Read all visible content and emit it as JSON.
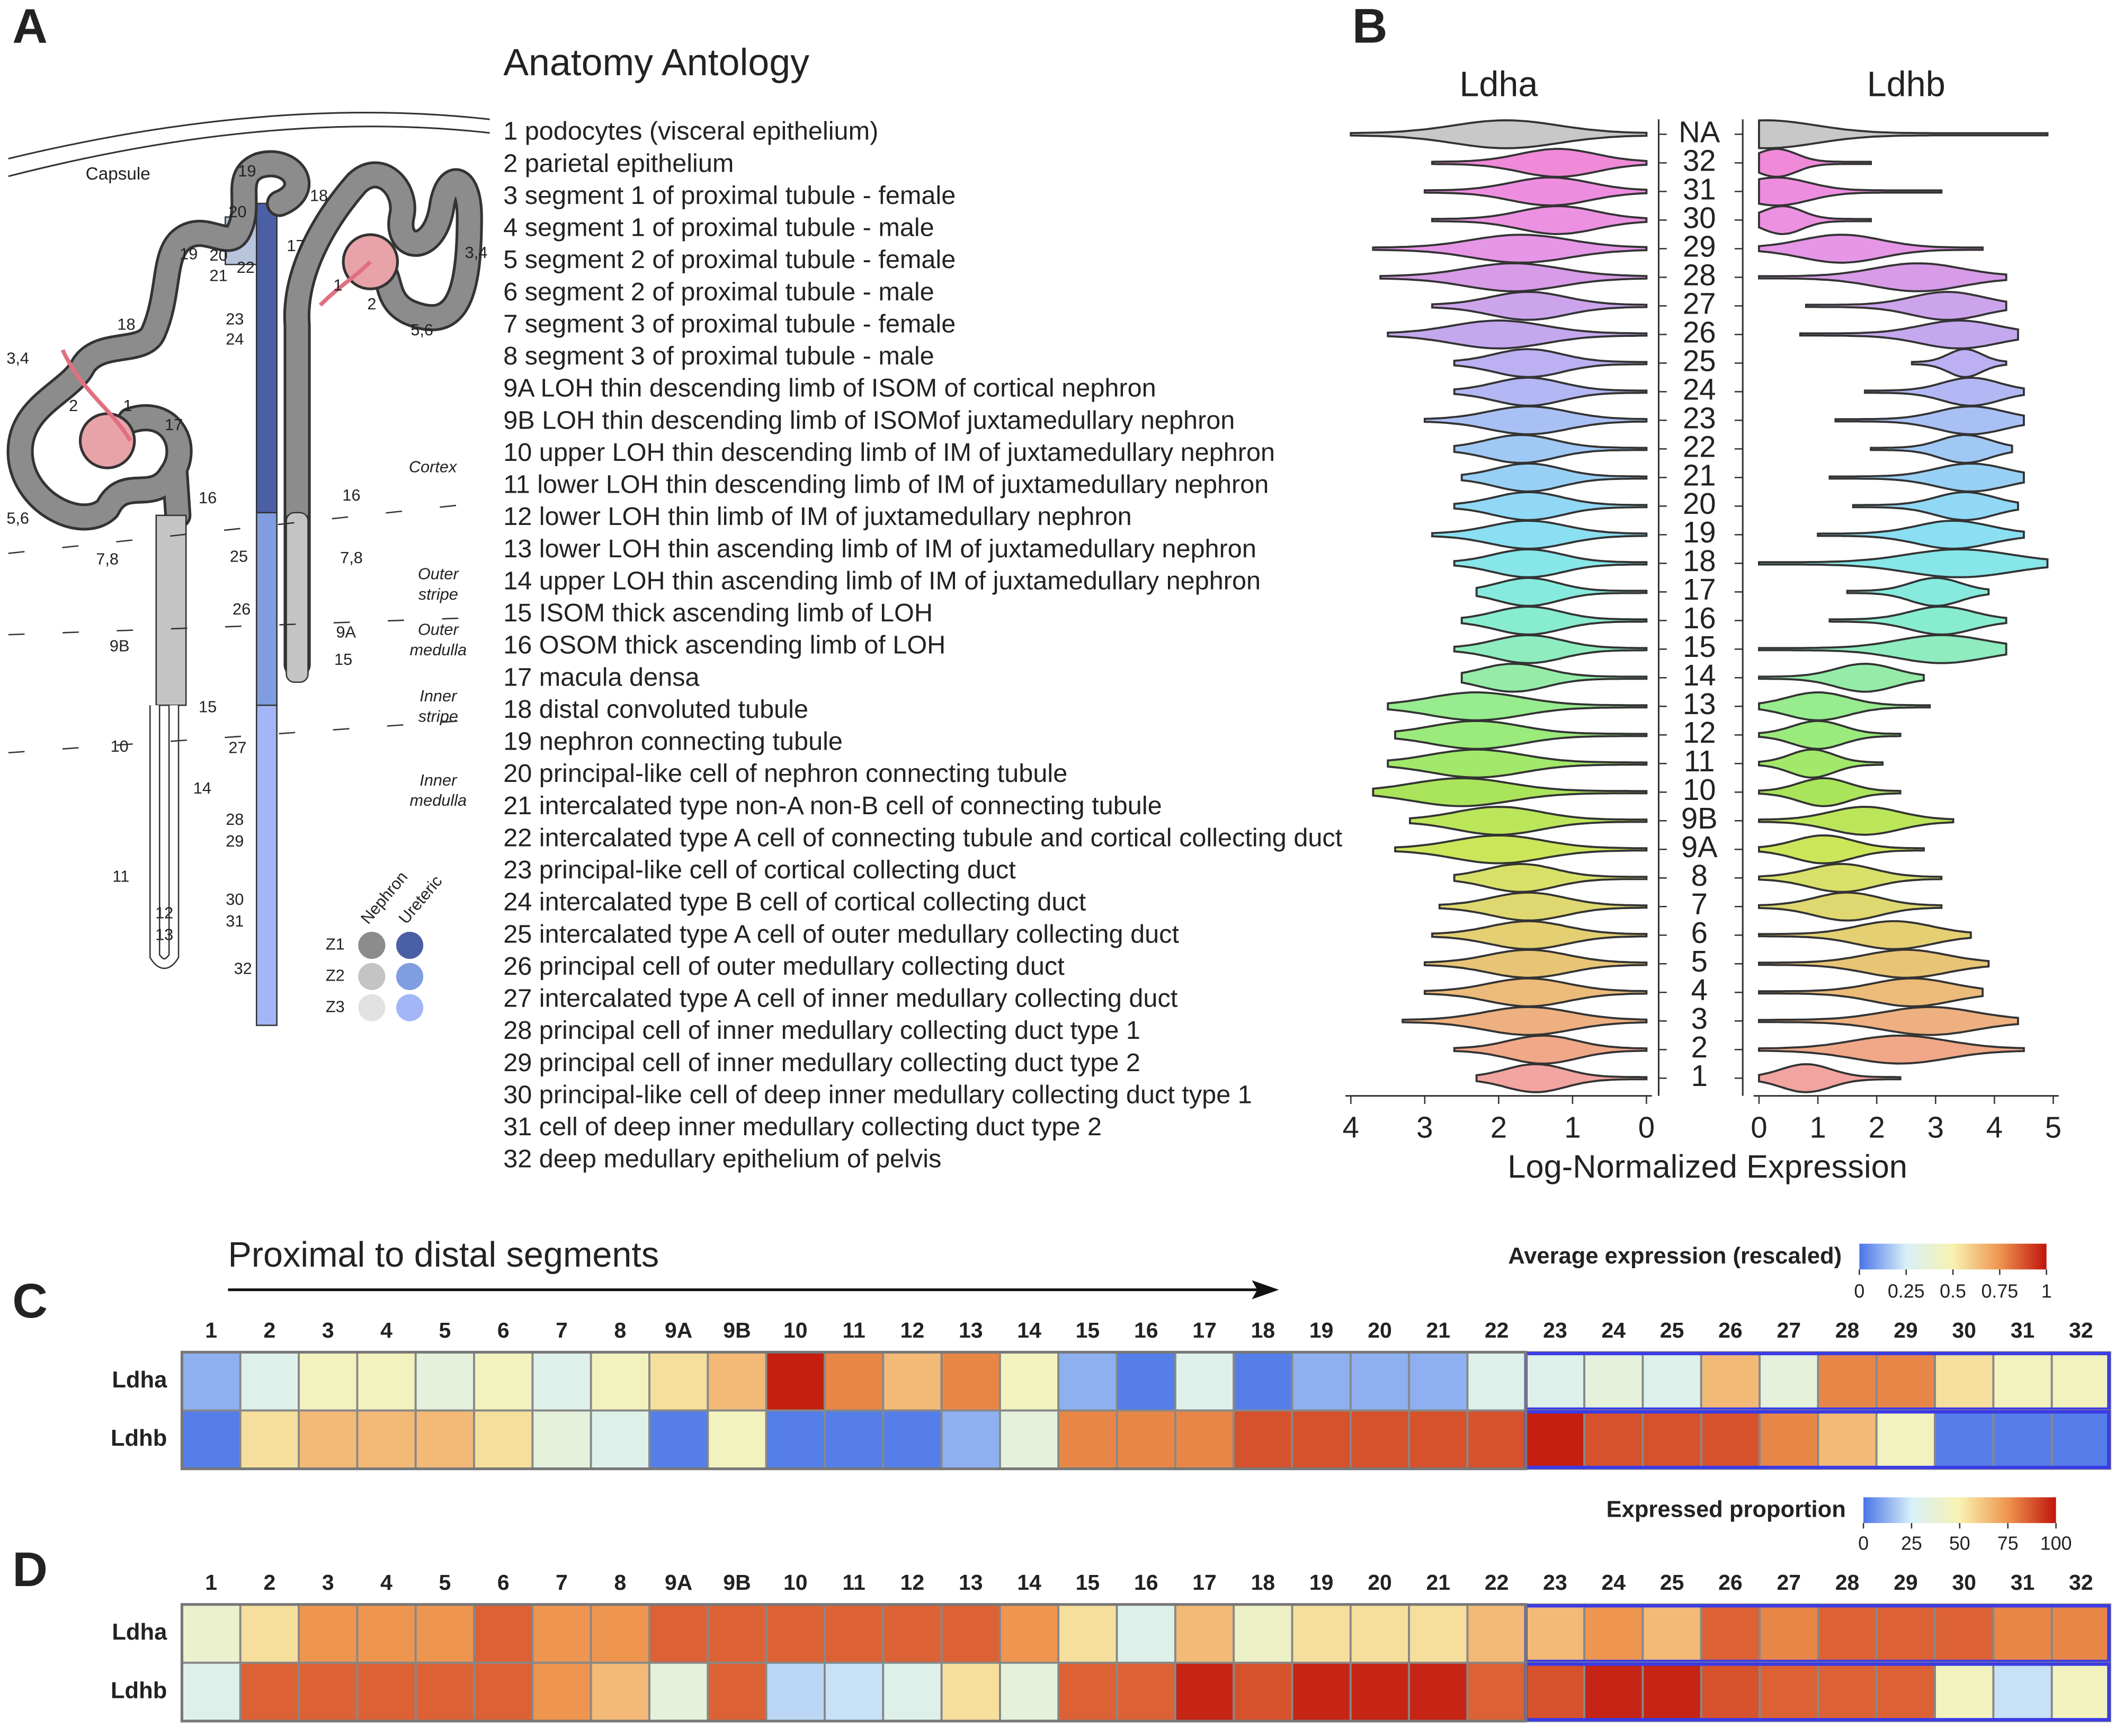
{
  "panels": [
    "A",
    "B",
    "C",
    "D"
  ],
  "anatomy": {
    "title": "Anatomy Antology",
    "items": [
      "1 podocytes (visceral epithelium)",
      "2 parietal epithelium",
      "3 segment 1 of proximal tubule - female",
      "4 segment 1 of proximal tubule - male",
      "5 segment 2 of proximal tubule - female",
      "6 segment 2 of proximal tubule - male",
      "7 segment 3 of proximal tubule - female",
      "8 segment 3 of proximal tubule - male",
      "9A LOH thin descending limb of ISOM of cortical nephron",
      "9B LOH thin descending limb of ISOMof juxtamedullary nephron",
      "10 upper LOH thin descending limb of IM of juxtamedullary nephron",
      "11 lower LOH thin descending limb of IM of juxtamedullary nephron",
      "12 lower LOH thin limb of IM of juxtamedullary nephron",
      "13 lower LOH thin ascending limb of IM of juxtamedullary nephron",
      "14 upper LOH thin ascending limb of IM of juxtamedullary nephron",
      "15 ISOM thick ascending limb of LOH",
      "16 OSOM thick ascending limb of LOH",
      "17 macula densa",
      "18 distal convoluted tubule",
      "19 nephron connecting tubule",
      "20 principal-like cell of nephron connecting tubule",
      "21 intercalated type non-A non-B cell of connecting tubule",
      "22 intercalated type A cell of connecting tubule and cortical collecting duct",
      "23 principal-like cell of cortical collecting duct",
      "24 intercalated type B cell of cortical collecting duct",
      "25 intercalated type A cell of outer medullary collecting duct",
      "26 principal cell of outer medullary collecting duct",
      "27 intercalated type A cell of inner medullary collecting duct",
      "28 principal cell of inner medullary collecting duct type 1",
      "29 principal cell of inner medullary collecting duct type 2",
      "30 principal-like cell of deep inner medullary collecting duct type 1",
      "31 cell of deep inner medullary collecting duct type 2",
      "32 deep medullary epithelium of pelvis"
    ]
  },
  "diagram": {
    "capsule": "Capsule",
    "zones": [
      [
        "Cortex"
      ],
      [
        "Outer",
        "stripe"
      ],
      [
        "Outer",
        "medulla"
      ],
      [
        "Inner",
        "stripe"
      ],
      [
        "Inner",
        "medulla"
      ]
    ],
    "nephron_labels": [
      "3,4",
      "18",
      "2",
      "1",
      "17",
      "5,6",
      "16",
      "7,8",
      "9B",
      "15",
      "10",
      "14",
      "11",
      "12",
      "13",
      "19",
      "20",
      "19",
      "20",
      "21",
      "22",
      "23",
      "24",
      "25",
      "26",
      "27",
      "28",
      "29",
      "30",
      "31",
      "32",
      "18",
      "17",
      "3,4",
      "1",
      "2",
      "5,6",
      "16",
      "7,8",
      "9A",
      "15"
    ],
    "legend": {
      "columns": [
        "Nephron",
        "Ureteric"
      ],
      "zones": [
        "Z1",
        "Z2",
        "Z3"
      ],
      "colors": [
        [
          "#8c8c8c",
          "#4b5fa6"
        ],
        [
          "#c4c4c4",
          "#7f9de0"
        ],
        [
          "#e2e2e2",
          "#a3b6f7"
        ]
      ]
    }
  },
  "chart_data": [
    {
      "type": "violin",
      "xlabel": "Log-Normalized Expression",
      "categories": [
        "NA",
        "32",
        "31",
        "30",
        "29",
        "28",
        "27",
        "26",
        "25",
        "24",
        "23",
        "22",
        "21",
        "20",
        "19",
        "18",
        "17",
        "16",
        "15",
        "14",
        "13",
        "12",
        "11",
        "10",
        "9B",
        "9A",
        "8",
        "7",
        "6",
        "5",
        "4",
        "3",
        "2",
        "1"
      ],
      "colors": [
        "#c8c8c8",
        "#f08ad8",
        "#ee8de0",
        "#ec90e2",
        "#e596e6",
        "#d79be8",
        "#cca4ec",
        "#c4a8ee",
        "#bcb0f2",
        "#b3b8f4",
        "#a9c0f5",
        "#a0c8f5",
        "#98d0f5",
        "#90d8f5",
        "#8adff2",
        "#87e6e8",
        "#86eade",
        "#88eccf",
        "#8eecbf",
        "#95eca8",
        "#96ec8e",
        "#9aea7c",
        "#a2e86a",
        "#aae45a",
        "#bce65a",
        "#cce65a",
        "#d8e06a",
        "#dfd870",
        "#e4cf72",
        "#e8c476",
        "#ecbb7a",
        "#eeb080",
        "#f0a888",
        "#f2a4a0"
      ],
      "series": [
        {
          "name": "Ldha",
          "xlim": [
            4,
            0
          ],
          "xticks": [
            0,
            1,
            2,
            3,
            4
          ],
          "min": [
            0,
            0,
            0,
            0,
            0,
            0,
            0,
            0,
            0,
            0,
            0,
            0,
            0,
            0,
            0,
            0,
            0,
            0,
            0,
            0,
            0,
            0,
            0,
            0,
            0,
            0,
            0,
            0,
            0,
            0,
            0,
            0,
            0,
            0
          ],
          "max": [
            4.0,
            2.9,
            3.0,
            2.9,
            3.7,
            3.6,
            2.9,
            3.5,
            2.6,
            2.6,
            3.0,
            2.6,
            2.5,
            2.6,
            2.9,
            2.6,
            2.3,
            2.5,
            2.6,
            2.5,
            3.5,
            3.4,
            3.5,
            3.7,
            3.2,
            3.4,
            2.6,
            2.8,
            2.9,
            3.0,
            3.0,
            3.3,
            2.6,
            2.3
          ],
          "peak": [
            1.9,
            1.2,
            1.3,
            1.2,
            1.7,
            1.8,
            1.6,
            2.0,
            1.6,
            1.6,
            1.6,
            1.7,
            1.6,
            1.6,
            1.6,
            1.6,
            1.6,
            1.6,
            1.6,
            1.8,
            2.3,
            2.3,
            2.3,
            2.5,
            2.0,
            2.0,
            1.7,
            1.6,
            1.6,
            1.6,
            1.6,
            1.6,
            1.4,
            1.5
          ]
        },
        {
          "name": "Ldhb",
          "xlim": [
            0,
            5
          ],
          "xticks": [
            0,
            1,
            2,
            3,
            4,
            5
          ],
          "min": [
            0,
            0,
            0,
            0,
            0,
            0,
            0.8,
            0.7,
            2.6,
            1.8,
            1.3,
            1.9,
            1.2,
            1.6,
            1.0,
            0,
            1.5,
            1.2,
            0,
            0,
            0,
            0,
            0,
            0,
            0,
            0,
            0,
            0,
            0,
            0,
            0,
            0,
            0,
            0
          ],
          "max": [
            4.9,
            1.9,
            3.1,
            1.9,
            3.8,
            4.2,
            4.2,
            4.4,
            4.2,
            4.5,
            4.5,
            4.3,
            4.5,
            4.4,
            4.5,
            4.9,
            3.9,
            4.2,
            4.2,
            2.8,
            2.9,
            2.4,
            2.1,
            2.4,
            3.3,
            2.8,
            3.1,
            3.1,
            3.6,
            3.9,
            3.8,
            4.4,
            4.5,
            2.4
          ],
          "peak": [
            0.1,
            0.3,
            0.3,
            0.4,
            1.4,
            2.7,
            3.2,
            3.4,
            3.5,
            3.6,
            3.6,
            3.5,
            3.6,
            3.5,
            3.3,
            3.4,
            3.0,
            3.1,
            3.1,
            1.8,
            1.0,
            1.0,
            0.9,
            1.1,
            1.8,
            1.1,
            1.4,
            1.5,
            2.3,
            2.5,
            2.6,
            2.9,
            2.4,
            0.8
          ]
        }
      ]
    },
    {
      "type": "heatmap",
      "annotation": "Proximal to distal segments",
      "categories": [
        "1",
        "2",
        "3",
        "4",
        "5",
        "6",
        "7",
        "8",
        "9A",
        "9B",
        "10",
        "11",
        "12",
        "13",
        "14",
        "15",
        "16",
        "17",
        "18",
        "19",
        "20",
        "21",
        "22",
        "23",
        "24",
        "25",
        "26",
        "27",
        "28",
        "29",
        "30",
        "31",
        "32"
      ],
      "category_colors": [
        "#000000",
        "#000000",
        "#d94fd9",
        "#4f9fd8",
        "#d94fd9",
        "#4f9fd8",
        "#d94fd9",
        "#4f9fd8",
        "#000000",
        "#000000",
        "#000000",
        "#000000",
        "#000000",
        "#000000",
        "#000000",
        "#000000",
        "#000000",
        "#000000",
        "#000000",
        "#000000",
        "#000000",
        "#000000",
        "#000000",
        "#000000",
        "#000000",
        "#000000",
        "#000000",
        "#000000",
        "#000000",
        "#000000",
        "#000000",
        "#000000",
        "#000000"
      ],
      "border_color": "#3b3be6",
      "rows": [
        "Ldha",
        "Ldhb"
      ],
      "values": [
        [
          0.12,
          0.3,
          0.45,
          0.45,
          0.35,
          0.45,
          0.3,
          0.45,
          0.55,
          0.65,
          0.98,
          0.78,
          0.65,
          0.78,
          0.45,
          0.12,
          0.02,
          0.3,
          0.02,
          0.12,
          0.12,
          0.12,
          0.3,
          0.3,
          0.35,
          0.3,
          0.65,
          0.35,
          0.78,
          0.78,
          0.55,
          0.45,
          0.45
        ],
        [
          0.02,
          0.55,
          0.65,
          0.65,
          0.65,
          0.55,
          0.35,
          0.3,
          0.02,
          0.45,
          0.02,
          0.02,
          0.02,
          0.12,
          0.35,
          0.78,
          0.78,
          0.78,
          0.88,
          0.88,
          0.88,
          0.88,
          0.88,
          0.98,
          0.88,
          0.88,
          0.88,
          0.78,
          0.65,
          0.45,
          0.02,
          0.02,
          0.02
        ]
      ],
      "colorbar": {
        "title": "Average expression (rescaled)",
        "lim": [
          0,
          1
        ],
        "ticks": [
          0,
          0.25,
          0.5,
          0.75,
          1
        ],
        "colors": [
          "#4a74e8",
          "#d8f0f8",
          "#f8f2b0",
          "#ee9550",
          "#c0150c"
        ]
      }
    },
    {
      "type": "heatmap",
      "categories": [
        "1",
        "2",
        "3",
        "4",
        "5",
        "6",
        "7",
        "8",
        "9A",
        "9B",
        "10",
        "11",
        "12",
        "13",
        "14",
        "15",
        "16",
        "17",
        "18",
        "19",
        "20",
        "21",
        "22",
        "23",
        "24",
        "25",
        "26",
        "27",
        "28",
        "29",
        "30",
        "31",
        "32"
      ],
      "category_colors": [
        "#000000",
        "#000000",
        "#d94fd9",
        "#4f9fd8",
        "#d94fd9",
        "#4f9fd8",
        "#d94fd9",
        "#4f9fd8",
        "#000000",
        "#000000",
        "#000000",
        "#000000",
        "#000000",
        "#000000",
        "#000000",
        "#000000",
        "#000000",
        "#000000",
        "#000000",
        "#000000",
        "#000000",
        "#000000",
        "#000000",
        "#000000",
        "#000000",
        "#000000",
        "#000000",
        "#000000",
        "#000000",
        "#000000",
        "#000000",
        "#000000",
        "#000000"
      ],
      "border_color": "#3b3be6",
      "rows": [
        "Ldha",
        "Ldhb"
      ],
      "values": [
        [
          40,
          55,
          75,
          75,
          75,
          85,
          75,
          75,
          85,
          85,
          85,
          85,
          85,
          85,
          75,
          55,
          30,
          65,
          42,
          55,
          55,
          55,
          65,
          65,
          75,
          65,
          85,
          78,
          85,
          85,
          85,
          78,
          78
        ],
        [
          30,
          85,
          85,
          85,
          85,
          85,
          75,
          65,
          35,
          85,
          20,
          22,
          30,
          55,
          35,
          85,
          85,
          97,
          88,
          97,
          97,
          97,
          85,
          88,
          97,
          97,
          88,
          85,
          85,
          85,
          45,
          22,
          45
        ]
      ],
      "colorbar": {
        "title": "Expressed proportion",
        "lim": [
          0,
          100
        ],
        "ticks": [
          0,
          25,
          50,
          75,
          100
        ],
        "colors": [
          "#4a74e8",
          "#d8f0f8",
          "#f8f2b0",
          "#ee9550",
          "#c0150c"
        ]
      }
    }
  ]
}
